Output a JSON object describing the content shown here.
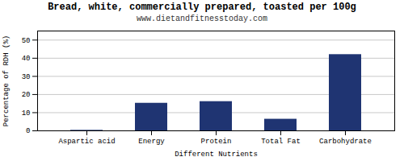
{
  "chart_data": {
    "type": "bar",
    "title": "Bread, white, commercially prepared, toasted per 100g",
    "subtitle": "www.dietandfitnesstoday.com",
    "xlabel": "Different Nutrients",
    "ylabel": "Percentage of RDH (%)",
    "categories": [
      "Aspartic acid",
      "Energy",
      "Protein",
      "Total Fat",
      "Carbohydrate"
    ],
    "values": [
      0.3,
      15.2,
      16.1,
      6.4,
      42.0
    ],
    "color": "#1f3472",
    "ylim": [
      0,
      55
    ],
    "yticks": [
      0,
      10,
      20,
      30,
      40,
      50
    ],
    "grid": true
  }
}
